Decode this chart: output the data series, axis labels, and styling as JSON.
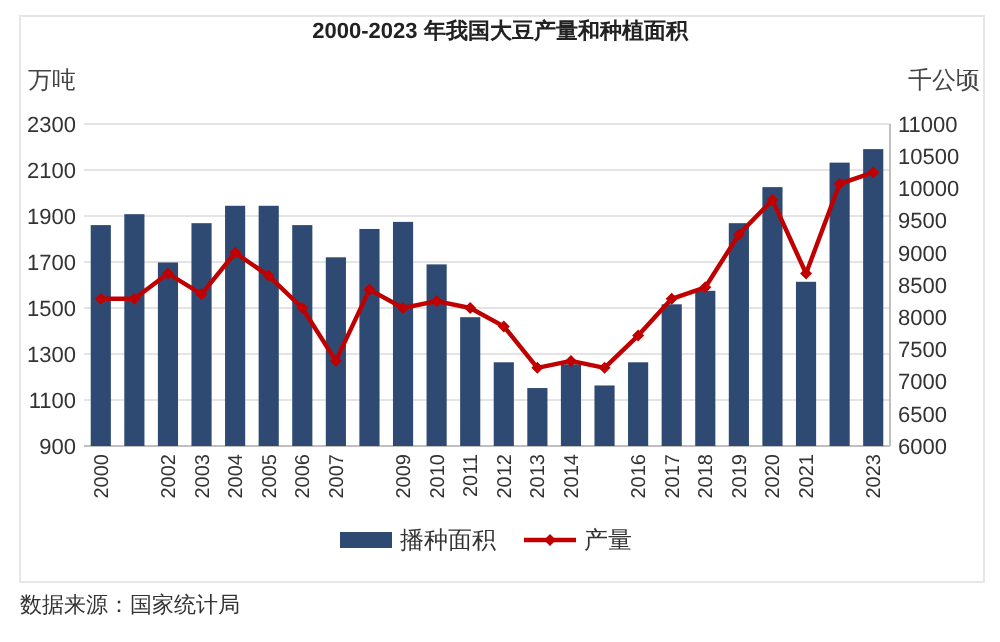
{
  "chart_data": {
    "type": "bar",
    "title": "2000-2023 年我国大豆产量和种植面积",
    "categories": [
      "2000",
      null,
      "2002",
      "2003",
      "2004",
      "2005",
      "2006",
      "2007",
      null,
      "2009",
      "2010",
      "2011",
      "2012",
      "2013",
      "2014",
      null,
      "2016",
      "2017",
      "2018",
      "2019",
      "2020",
      "2021",
      null,
      "2023"
    ],
    "series": [
      {
        "name": "播种面积",
        "axis": "y2",
        "color": "#2e4a72",
        "values": [
          9430,
          9600,
          8850,
          9460,
          9730,
          9730,
          9430,
          8930,
          9370,
          9480,
          8820,
          8000,
          7300,
          6900,
          7270,
          6940,
          7300,
          8200,
          8410,
          9460,
          10020,
          8550,
          10400,
          10610
        ]
      },
      {
        "name": "产量",
        "type": "line",
        "color": "#c00000",
        "marker": "diamond",
        "values": [
          1540,
          1540,
          1650,
          1560,
          1740,
          1640,
          1500,
          1270,
          1580,
          1500,
          1530,
          1500,
          1420,
          1240,
          1270,
          1240,
          1380,
          1540,
          1590,
          1820,
          1970,
          1650,
          2040,
          2090
        ]
      }
    ],
    "ylabel": "万吨",
    "y2label": "千公顷",
    "ylim": [
      900,
      2300
    ],
    "yticks": [
      900,
      1100,
      1300,
      1500,
      1700,
      1900,
      2100,
      2300
    ],
    "y2lim": [
      6000,
      11000
    ],
    "y2ticks": [
      6000,
      6500,
      7000,
      7500,
      8000,
      8500,
      9000,
      9500,
      10000,
      10500,
      11000
    ],
    "grid": "y",
    "legend": "bottom",
    "annotations": [
      "数据来源：国家统计局"
    ]
  }
}
